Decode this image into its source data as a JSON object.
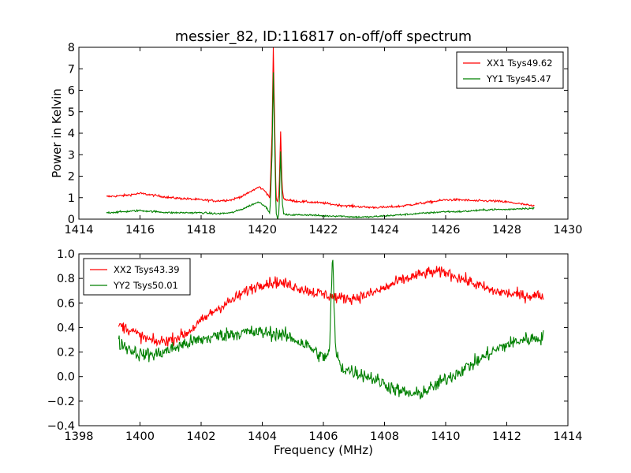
{
  "figure": {
    "title": "messier_82, ID:116817 on-off/off spectrum",
    "background": "#ffffff"
  },
  "chart_data": [
    {
      "type": "line",
      "title": "messier_82, ID:116817 on-off/off spectrum",
      "xlabel": "",
      "ylabel": "Power in Kelvin",
      "xlim": [
        1414,
        1430
      ],
      "ylim": [
        0,
        8
      ],
      "xticks": [
        1414,
        1416,
        1418,
        1420,
        1422,
        1424,
        1426,
        1428,
        1430
      ],
      "yticks": [
        0,
        1,
        2,
        3,
        4,
        5,
        6,
        7,
        8
      ],
      "grid": false,
      "legend_position": "top-right",
      "series": [
        {
          "name": "XX1 Tsys49.62",
          "color": "#ff0000",
          "noise": 0.05,
          "x": [
            1414.9,
            1415.5,
            1416.0,
            1416.5,
            1417.0,
            1417.5,
            1418.0,
            1418.5,
            1419.0,
            1419.4,
            1419.7,
            1419.9,
            1420.1,
            1420.25,
            1420.32,
            1420.36,
            1420.4,
            1420.45,
            1420.5,
            1420.55,
            1420.6,
            1420.65,
            1420.7,
            1420.8,
            1421.0,
            1421.5,
            1422.0,
            1422.5,
            1423.0,
            1423.5,
            1424.0,
            1424.5,
            1425.0,
            1425.5,
            1426.0,
            1426.5,
            1427.0,
            1427.5,
            1428.0,
            1428.5,
            1428.9
          ],
          "y": [
            1.05,
            1.1,
            1.2,
            1.1,
            1.0,
            0.95,
            0.9,
            0.85,
            0.9,
            1.1,
            1.35,
            1.5,
            1.3,
            1.0,
            4.0,
            8.0,
            5.0,
            1.0,
            0.8,
            1.2,
            4.1,
            1.5,
            0.95,
            0.9,
            0.85,
            0.8,
            0.75,
            0.65,
            0.6,
            0.55,
            0.55,
            0.6,
            0.7,
            0.8,
            0.9,
            0.9,
            0.85,
            0.85,
            0.8,
            0.7,
            0.6
          ]
        },
        {
          "name": "YY1 Tsys45.47",
          "color": "#008000",
          "noise": 0.04,
          "x": [
            1414.9,
            1415.5,
            1416.0,
            1416.5,
            1417.0,
            1417.5,
            1418.0,
            1418.5,
            1419.0,
            1419.4,
            1419.7,
            1419.9,
            1420.1,
            1420.25,
            1420.32,
            1420.36,
            1420.4,
            1420.45,
            1420.5,
            1420.55,
            1420.6,
            1420.65,
            1420.7,
            1420.8,
            1421.0,
            1421.5,
            1422.0,
            1422.5,
            1423.0,
            1423.5,
            1424.0,
            1424.5,
            1425.0,
            1425.5,
            1426.0,
            1426.5,
            1427.0,
            1427.5,
            1428.0,
            1428.5,
            1428.9
          ],
          "y": [
            0.3,
            0.35,
            0.4,
            0.35,
            0.3,
            0.3,
            0.3,
            0.25,
            0.3,
            0.5,
            0.7,
            0.8,
            0.6,
            0.3,
            3.0,
            6.8,
            4.0,
            0.3,
            0.0,
            0.3,
            3.2,
            0.8,
            0.25,
            0.2,
            0.2,
            0.2,
            0.15,
            0.15,
            0.1,
            0.1,
            0.15,
            0.2,
            0.25,
            0.3,
            0.35,
            0.35,
            0.4,
            0.45,
            0.45,
            0.5,
            0.5
          ]
        }
      ]
    },
    {
      "type": "line",
      "title": "",
      "xlabel": "Frequency (MHz)",
      "ylabel": "",
      "xlim": [
        1398,
        1414
      ],
      "ylim": [
        -0.4,
        1.0
      ],
      "xticks": [
        1398,
        1400,
        1402,
        1404,
        1406,
        1408,
        1410,
        1412,
        1414
      ],
      "yticks": [
        -0.4,
        -0.2,
        0.0,
        0.2,
        0.4,
        0.6,
        0.8,
        1.0
      ],
      "grid": false,
      "legend_position": "top-left",
      "series": [
        {
          "name": "XX2 Tsys43.39",
          "color": "#ff0000",
          "noise": 0.045,
          "x": [
            1399.3,
            1399.7,
            1400.0,
            1400.5,
            1401.0,
            1401.5,
            1402.0,
            1402.5,
            1403.0,
            1403.5,
            1404.0,
            1404.5,
            1405.0,
            1405.5,
            1406.0,
            1406.5,
            1407.0,
            1407.5,
            1408.0,
            1408.5,
            1409.0,
            1409.5,
            1410.0,
            1410.5,
            1411.0,
            1411.5,
            1412.0,
            1412.5,
            1413.2
          ],
          "y": [
            0.42,
            0.38,
            0.33,
            0.28,
            0.3,
            0.35,
            0.45,
            0.55,
            0.62,
            0.7,
            0.76,
            0.77,
            0.74,
            0.7,
            0.67,
            0.64,
            0.64,
            0.67,
            0.72,
            0.78,
            0.82,
            0.85,
            0.85,
            0.8,
            0.75,
            0.7,
            0.68,
            0.66,
            0.66
          ]
        },
        {
          "name": "YY2 Tsys50.01",
          "color": "#008000",
          "noise": 0.055,
          "x": [
            1399.3,
            1399.7,
            1400.0,
            1400.5,
            1401.0,
            1401.5,
            1402.0,
            1402.5,
            1403.0,
            1403.5,
            1404.0,
            1404.5,
            1405.0,
            1405.5,
            1406.0,
            1406.2,
            1406.3,
            1406.4,
            1406.6,
            1407.0,
            1407.5,
            1408.0,
            1408.5,
            1409.0,
            1409.5,
            1410.0,
            1410.5,
            1411.0,
            1411.5,
            1412.0,
            1412.5,
            1413.2
          ],
          "y": [
            0.28,
            0.22,
            0.18,
            0.18,
            0.22,
            0.27,
            0.3,
            0.33,
            0.35,
            0.36,
            0.36,
            0.35,
            0.31,
            0.25,
            0.15,
            0.2,
            1.0,
            0.2,
            0.07,
            0.04,
            0.0,
            -0.06,
            -0.12,
            -0.15,
            -0.1,
            -0.02,
            0.05,
            0.12,
            0.2,
            0.26,
            0.3,
            0.32
          ]
        }
      ]
    }
  ]
}
